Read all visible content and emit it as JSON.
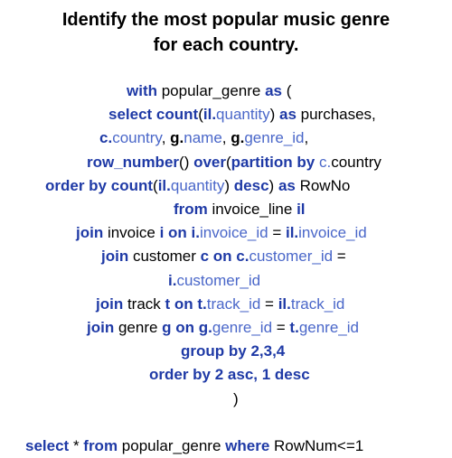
{
  "colors": {
    "keyword": "#1f3aa6",
    "identifier": "#4a67c9",
    "plain": "#000000"
  },
  "title": {
    "line1": "Identify the most popular music genre",
    "line2": "for each country."
  },
  "code": [
    {
      "id": "with-line",
      "indent": 140,
      "tokens": [
        {
          "t": "with ",
          "s": "kw"
        },
        {
          "t": "popular_genre ",
          "s": "plain"
        },
        {
          "t": "as ",
          "s": "kw"
        },
        {
          "t": "(",
          "s": "plain"
        }
      ]
    },
    {
      "id": "select-line",
      "indent": 120,
      "tokens": [
        {
          "t": "select count",
          "s": "kw"
        },
        {
          "t": "(",
          "s": "plain"
        },
        {
          "t": "il.",
          "s": "kw"
        },
        {
          "t": "quantity",
          "s": "id"
        },
        {
          "t": ") ",
          "s": "plain"
        },
        {
          "t": "as ",
          "s": "kw"
        },
        {
          "t": "purchases,",
          "s": "plain"
        }
      ]
    },
    {
      "id": "columns-line",
      "indent": 110,
      "tokens": [
        {
          "t": "c.",
          "s": "kw"
        },
        {
          "t": "country",
          "s": "id"
        },
        {
          "t": ", ",
          "s": "plain"
        },
        {
          "t": "g.",
          "s": "kwb"
        },
        {
          "t": "name",
          "s": "id"
        },
        {
          "t": ", ",
          "s": "plain"
        },
        {
          "t": "g.",
          "s": "kwb"
        },
        {
          "t": "genre_id",
          "s": "id"
        },
        {
          "t": ",",
          "s": "plain"
        }
      ]
    },
    {
      "id": "row-number-line",
      "indent": 96,
      "tokens": [
        {
          "t": "row_number",
          "s": "kw"
        },
        {
          "t": "() ",
          "s": "plain"
        },
        {
          "t": "over",
          "s": "kw"
        },
        {
          "t": "(",
          "s": "plain"
        },
        {
          "t": "partition by ",
          "s": "kw"
        },
        {
          "t": "c.",
          "s": "id"
        },
        {
          "t": "country",
          "s": "plain"
        }
      ]
    },
    {
      "id": "order-by-line",
      "indent": 50,
      "tokens": [
        {
          "t": "order by count",
          "s": "kw"
        },
        {
          "t": "(",
          "s": "plain"
        },
        {
          "t": "il.",
          "s": "kw"
        },
        {
          "t": "quantity",
          "s": "id"
        },
        {
          "t": ") ",
          "s": "plain"
        },
        {
          "t": "desc",
          "s": "kw"
        },
        {
          "t": ") ",
          "s": "plain"
        },
        {
          "t": "as ",
          "s": "kw"
        },
        {
          "t": "RowNo",
          "s": "plain"
        }
      ]
    },
    {
      "id": "from-line",
      "indent": 192,
      "tokens": [
        {
          "t": "from ",
          "s": "kw"
        },
        {
          "t": "invoice_line ",
          "s": "plain"
        },
        {
          "t": "il",
          "s": "kw"
        }
      ]
    },
    {
      "id": "join-invoice-line",
      "indent": 84,
      "tokens": [
        {
          "t": "join ",
          "s": "kw"
        },
        {
          "t": "invoice ",
          "s": "plain"
        },
        {
          "t": "i on i.",
          "s": "kw"
        },
        {
          "t": "invoice_id",
          "s": "id"
        },
        {
          "t": " = ",
          "s": "plain"
        },
        {
          "t": "il.",
          "s": "kw"
        },
        {
          "t": "invoice_id",
          "s": "id"
        }
      ]
    },
    {
      "id": "join-customer-line",
      "indent": 112,
      "tokens": [
        {
          "t": "join ",
          "s": "kw"
        },
        {
          "t": "customer ",
          "s": "plain"
        },
        {
          "t": "c on c.",
          "s": "kw"
        },
        {
          "t": "customer_id",
          "s": "id"
        },
        {
          "t": " =",
          "s": "plain"
        }
      ]
    },
    {
      "id": "customer-id-line",
      "indent": 186,
      "tokens": [
        {
          "t": "i.",
          "s": "kw"
        },
        {
          "t": "customer_id",
          "s": "id"
        }
      ]
    },
    {
      "id": "join-track-line",
      "indent": 106,
      "tokens": [
        {
          "t": "join ",
          "s": "kw"
        },
        {
          "t": "track ",
          "s": "plain"
        },
        {
          "t": "t on t.",
          "s": "kw"
        },
        {
          "t": "track_id",
          "s": "id"
        },
        {
          "t": " = ",
          "s": "plain"
        },
        {
          "t": "il.",
          "s": "kw"
        },
        {
          "t": "track_id",
          "s": "id"
        }
      ]
    },
    {
      "id": "join-genre-line",
      "indent": 96,
      "tokens": [
        {
          "t": "join ",
          "s": "kw"
        },
        {
          "t": "genre ",
          "s": "plain"
        },
        {
          "t": "g on g.",
          "s": "kw"
        },
        {
          "t": "genre_id",
          "s": "id"
        },
        {
          "t": " = ",
          "s": "plain"
        },
        {
          "t": "t.",
          "s": "kw"
        },
        {
          "t": "genre_id",
          "s": "id"
        }
      ]
    },
    {
      "id": "group-by-line",
      "indent": 200,
      "tokens": [
        {
          "t": "group by 2,3,4",
          "s": "kw"
        }
      ]
    },
    {
      "id": "order-by-2-line",
      "indent": 165,
      "tokens": [
        {
          "t": "order by 2 asc, 1 desc",
          "s": "kw"
        }
      ]
    },
    {
      "id": "close-paren-line",
      "indent": 258,
      "tokens": [
        {
          "t": ")",
          "s": "plain"
        }
      ]
    },
    {
      "id": "blank-line",
      "indent": 0,
      "tokens": []
    },
    {
      "id": "final-select-line",
      "indent": 28,
      "tokens": [
        {
          "t": "select ",
          "s": "kw"
        },
        {
          "t": "* ",
          "s": "plain"
        },
        {
          "t": "from ",
          "s": "kw"
        },
        {
          "t": "popular_genre ",
          "s": "plain"
        },
        {
          "t": "where ",
          "s": "kw"
        },
        {
          "t": "RowNum<=1",
          "s": "plain"
        }
      ]
    }
  ]
}
